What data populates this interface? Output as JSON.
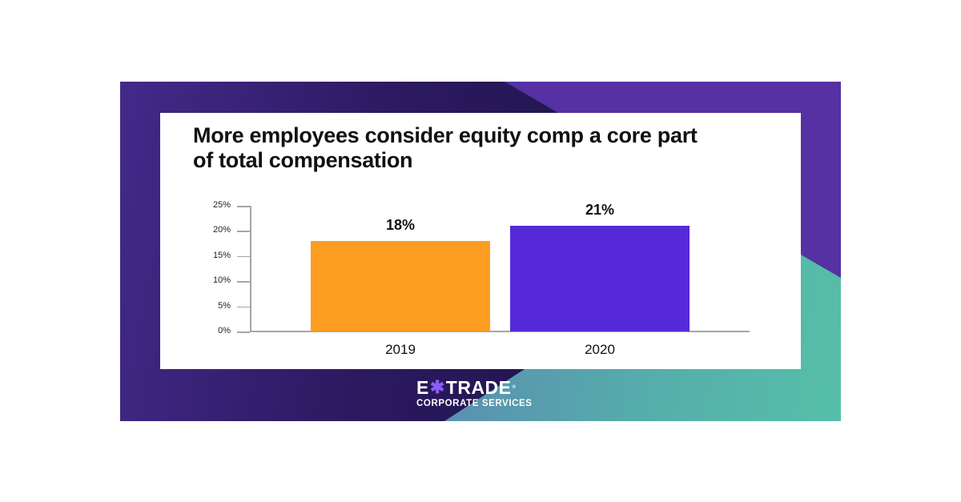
{
  "title": "More employees consider equity comp a core part of total compensation",
  "title_lines": [
    "More employees consider equity comp a core part",
    "of total compensation"
  ],
  "colors": {
    "bar_2019": "#fd9e22",
    "bar_2020": "#5629d9",
    "background_dark": "#231650",
    "background_purple": "#5531a3",
    "background_teal": "#56bfa8"
  },
  "chart_data": {
    "type": "bar",
    "title": "More employees consider equity comp a core part of total compensation",
    "categories": [
      "2019",
      "2020"
    ],
    "values": [
      18,
      21
    ],
    "value_labels": [
      "18%",
      "21%"
    ],
    "xlabel": "",
    "ylabel": "",
    "ylim": [
      0,
      25
    ],
    "y_ticks": [
      "0%",
      "5%",
      "10%",
      "15%",
      "20%",
      "25%"
    ],
    "grid": false,
    "legend": "none"
  },
  "logo": {
    "brand_left": "E",
    "brand_right": "TRADE",
    "registered": "®",
    "subtitle": "CORPORATE SERVICES"
  }
}
